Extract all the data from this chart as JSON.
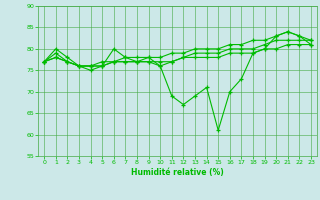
{
  "xlabel": "Humidité relative (%)",
  "background_color": "#cce8e8",
  "grid_color": "#44aa44",
  "line_color": "#00bb00",
  "xlim": [
    -0.5,
    23.5
  ],
  "ylim": [
    55,
    90
  ],
  "yticks": [
    55,
    60,
    65,
    70,
    75,
    80,
    85,
    90
  ],
  "xticks": [
    0,
    1,
    2,
    3,
    4,
    5,
    6,
    7,
    8,
    9,
    10,
    11,
    12,
    13,
    14,
    15,
    16,
    17,
    18,
    19,
    20,
    21,
    22,
    23
  ],
  "series": [
    [
      77,
      80,
      78,
      76,
      75,
      76,
      80,
      78,
      77,
      77,
      76,
      69,
      67,
      69,
      71,
      61,
      70,
      73,
      79,
      80,
      83,
      84,
      83,
      81
    ],
    [
      77,
      79,
      77,
      76,
      76,
      77,
      77,
      78,
      78,
      78,
      76,
      77,
      78,
      79,
      79,
      79,
      80,
      80,
      80,
      81,
      82,
      82,
      82,
      82
    ],
    [
      77,
      78,
      77,
      76,
      76,
      76,
      77,
      77,
      77,
      77,
      77,
      77,
      78,
      78,
      78,
      78,
      79,
      79,
      79,
      80,
      80,
      81,
      81,
      81
    ],
    [
      77,
      78,
      77,
      76,
      76,
      76,
      77,
      77,
      77,
      78,
      78,
      79,
      79,
      80,
      80,
      80,
      81,
      81,
      82,
      82,
      83,
      84,
      83,
      82
    ]
  ]
}
